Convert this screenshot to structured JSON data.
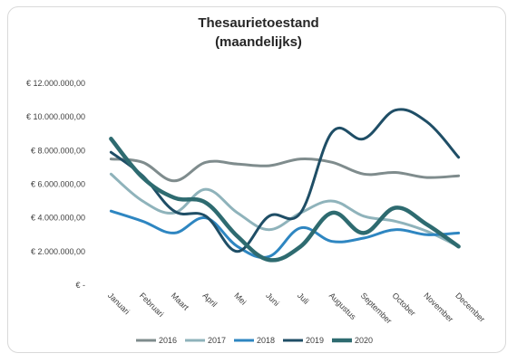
{
  "chart_data": {
    "type": "line",
    "title": "Thesaurietoestand",
    "subtitle": "(maandelijks)",
    "xlabel": "",
    "ylabel": "",
    "categories": [
      "Januari",
      "Februari",
      "Maart",
      "April",
      "Mei",
      "Juni",
      "Juli",
      "Augustus",
      "September",
      "October",
      "November",
      "December"
    ],
    "ylim": [
      0,
      12000000
    ],
    "yticks": [
      0,
      2000000,
      4000000,
      6000000,
      8000000,
      10000000,
      12000000
    ],
    "ytick_labels": [
      "€ -",
      "€ 2.000.000,00",
      "€ 4.000.000,00",
      "€ 6.000.000,00",
      "€ 8.000.000,00",
      "€ 10.000.000,00",
      "€ 12.000.000,00"
    ],
    "grid": false,
    "legend_position": "bottom",
    "series": [
      {
        "name": "2016",
        "color": "#7f8c8d",
        "values": [
          7500000,
          7300000,
          6200000,
          7300000,
          7200000,
          7100000,
          7500000,
          7300000,
          6600000,
          6700000,
          6400000,
          6500000
        ]
      },
      {
        "name": "2017",
        "color": "#8fb3bb",
        "values": [
          6600000,
          5000000,
          4300000,
          5700000,
          4300000,
          3300000,
          4300000,
          5000000,
          4100000,
          3800000,
          3200000,
          2300000
        ]
      },
      {
        "name": "2018",
        "color": "#2e86c1",
        "values": [
          4400000,
          3800000,
          3100000,
          4000000,
          2300000,
          1700000,
          3400000,
          2600000,
          2800000,
          3300000,
          3000000,
          3100000
        ]
      },
      {
        "name": "2019",
        "color": "#1f4e66",
        "values": [
          7900000,
          6500000,
          4400000,
          4100000,
          2000000,
          4100000,
          4300000,
          9100000,
          8700000,
          10400000,
          9700000,
          7600000
        ]
      },
      {
        "name": "2020",
        "color": "#2e6b70",
        "values": [
          8700000,
          6400000,
          5200000,
          4900000,
          2900000,
          1500000,
          2300000,
          4300000,
          3100000,
          4600000,
          3600000,
          2300000
        ]
      }
    ]
  }
}
